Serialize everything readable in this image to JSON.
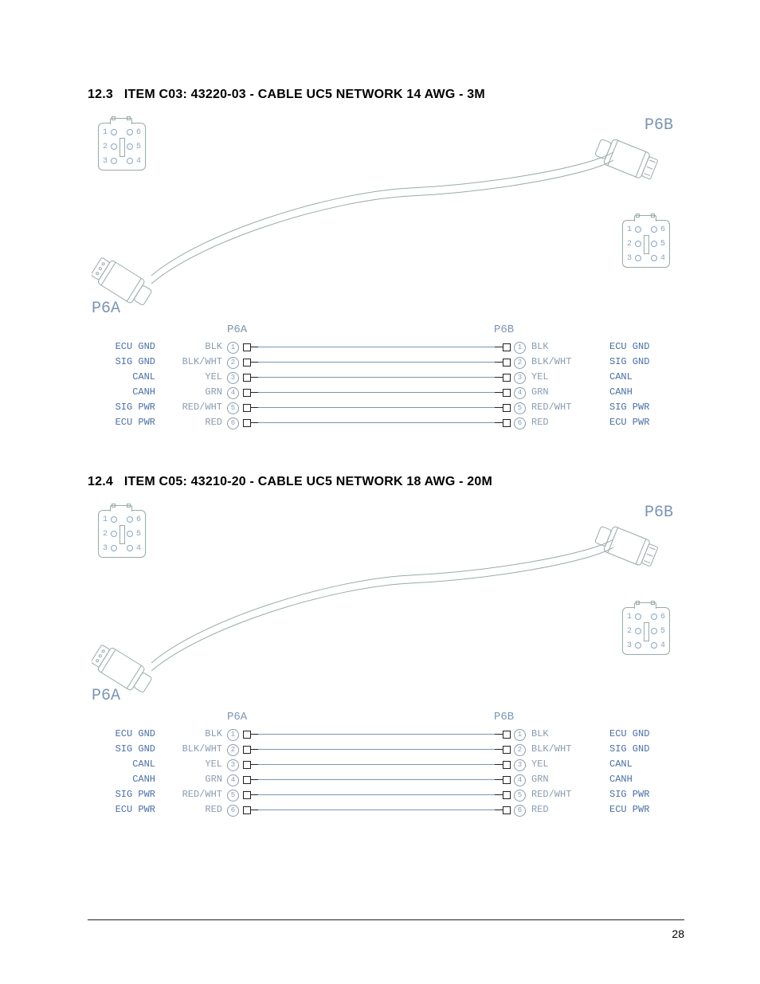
{
  "page_number": "28",
  "sections": [
    {
      "number": "12.3",
      "title": "ITEM C03: 43220-03 - CABLE UC5 NETWORK 14 AWG - 3M",
      "left_connector": "P6A",
      "right_connector": "P6B"
    },
    {
      "number": "12.4",
      "title": "ITEM C05: 43210-20 - CABLE UC5 NETWORK 18 AWG - 20M",
      "left_connector": "P6A",
      "right_connector": "P6B"
    }
  ],
  "pinface": {
    "pins": [
      "1",
      "2",
      "3",
      "4",
      "5",
      "6"
    ]
  },
  "wiring": {
    "header_left": "P6A",
    "header_right": "P6B",
    "rows": [
      {
        "pin": "1",
        "signal_left": "ECU GND",
        "color_left": "BLK",
        "color_right": "BLK",
        "signal_right": "ECU GND"
      },
      {
        "pin": "2",
        "signal_left": "SIG GND",
        "color_left": "BLK/WHT",
        "color_right": "BLK/WHT",
        "signal_right": "SIG GND"
      },
      {
        "pin": "3",
        "signal_left": "CANL",
        "color_left": "YEL",
        "color_right": "YEL",
        "signal_right": "CANL"
      },
      {
        "pin": "4",
        "signal_left": "CANH",
        "color_left": "GRN",
        "color_right": "GRN",
        "signal_right": "CANH"
      },
      {
        "pin": "5",
        "signal_left": "SIG PWR",
        "color_left": "RED/WHT",
        "color_right": "RED/WHT",
        "signal_right": "SIG PWR"
      },
      {
        "pin": "6",
        "signal_left": "ECU PWR",
        "color_left": "RED",
        "color_right": "RED",
        "signal_right": "ECU PWR"
      }
    ]
  },
  "colors": {
    "heading": "#000000",
    "signal": "#4a6fa5",
    "wirecolor_text": "#8a9cb0",
    "connector_label": "#7a95b3",
    "wire_line": "#7a95b3",
    "outline": "#9aa"
  }
}
